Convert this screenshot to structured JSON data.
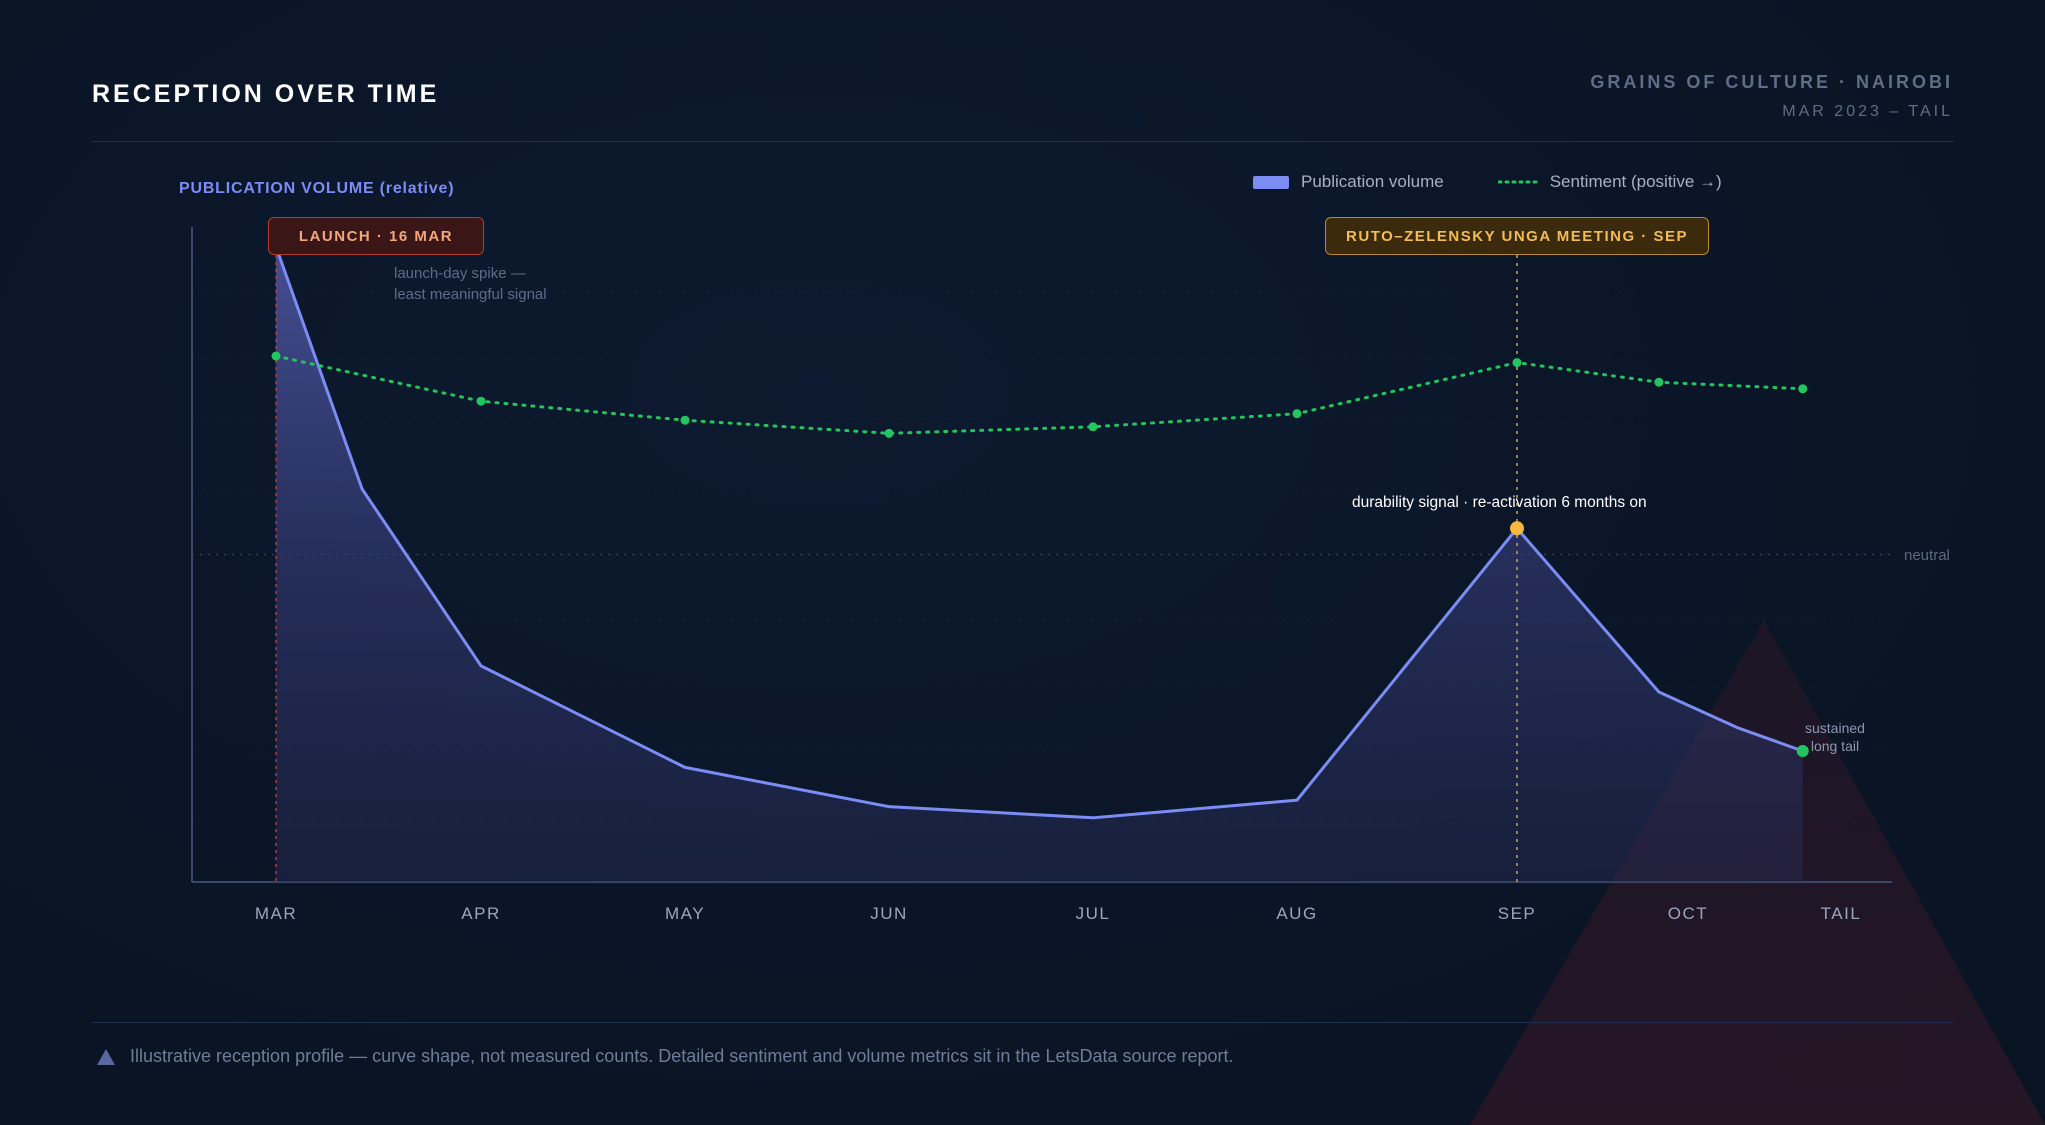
{
  "header": {
    "title": "RECEPTION OVER TIME",
    "brand": "GRAINS OF CULTURE · NAIROBI",
    "period": "MAR 2023 – TAIL"
  },
  "legend": {
    "volume": "Publication volume",
    "sentiment": "Sentiment (positive →)"
  },
  "badges": {
    "launch": "LAUNCH · 16 MAR",
    "sep": "RUTO–ZELENSKY UNGA MEETING · SEP"
  },
  "annotations": {
    "spike_line1": "launch-day spike —",
    "spike_line2": "least meaningful signal",
    "durability": "durability signal · re-activation 6 months on",
    "tail_line1": "sustained",
    "tail_line2": "long tail",
    "neutral": "neutral"
  },
  "footer": {
    "text": "Illustrative reception profile — curve shape, not measured counts. Detailed sentiment and volume metrics sit in the LetsData source report."
  },
  "colors": {
    "volume": "#7c8cf5",
    "sentiment": "#22c55e",
    "launch_marker": "#b63b2f",
    "sep_marker": "#f5b942",
    "background": "#0b1628"
  },
  "chart_data": {
    "type": "area",
    "ylabel": "PUBLICATION VOLUME (relative)",
    "categories": [
      "MAR",
      "APR",
      "MAY",
      "JUN",
      "JUL",
      "AUG",
      "SEP",
      "OCT",
      "TAIL"
    ],
    "ylim": [
      0,
      100
    ],
    "grid": true,
    "legend_position": "top-right",
    "series": [
      {
        "name": "Publication volume",
        "kind": "area",
        "points": [
          {
            "x": 0,
            "y": 97
          },
          {
            "x": 0.42,
            "y": 60
          },
          {
            "x": 1,
            "y": 33
          },
          {
            "x": 2,
            "y": 17.5
          },
          {
            "x": 3,
            "y": 11.5
          },
          {
            "x": 4,
            "y": 9.8
          },
          {
            "x": 5,
            "y": 12.5
          },
          {
            "x": 6,
            "y": 54
          },
          {
            "x": 6.83,
            "y": 29
          },
          {
            "x": 7.33,
            "y": 23.5
          },
          {
            "x": 7.75,
            "y": 20
          }
        ]
      },
      {
        "name": "Sentiment (positive →)",
        "kind": "line",
        "y_reference": {
          "label": "neutral",
          "value": 50
        },
        "points": [
          {
            "x": 0,
            "y": 80.3
          },
          {
            "x": 1,
            "y": 73.4
          },
          {
            "x": 2,
            "y": 70.5
          },
          {
            "x": 3,
            "y": 68.5
          },
          {
            "x": 4,
            "y": 69.5
          },
          {
            "x": 5,
            "y": 71.5
          },
          {
            "x": 6,
            "y": 79.3
          },
          {
            "x": 6.83,
            "y": 76.3
          },
          {
            "x": 7.75,
            "y": 75.3
          }
        ]
      }
    ],
    "events": [
      {
        "x": 0,
        "label": "LAUNCH · 16 MAR"
      },
      {
        "x": 6,
        "label": "RUTO–ZELENSKY UNGA MEETING · SEP"
      }
    ]
  }
}
